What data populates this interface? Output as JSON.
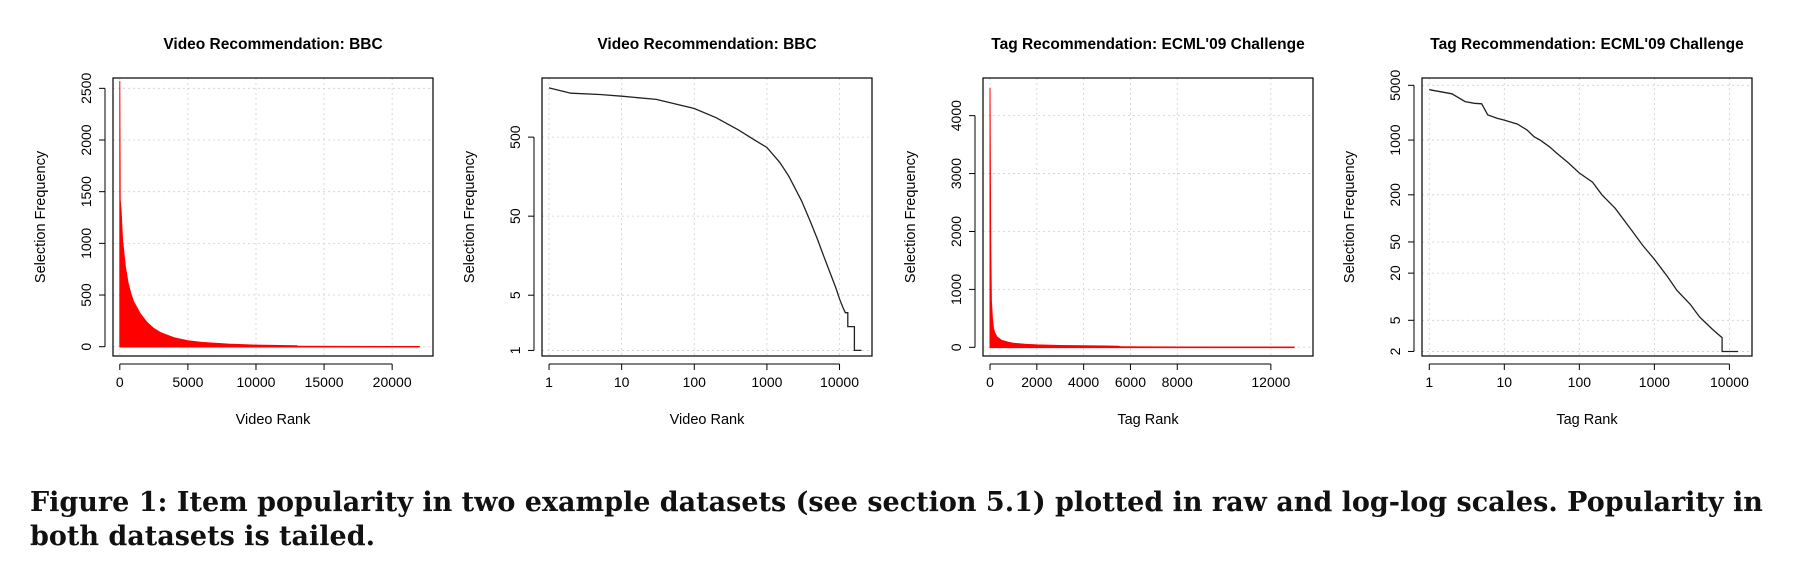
{
  "caption": "Figure 1: Item popularity in two example datasets (see section 5.1) plotted in raw and log-log scales. Popularity in both datasets is tailed.",
  "colors": {
    "raw_fill": "#ff0000",
    "line": "#222222",
    "grid": "#d0d0d0",
    "axis": "#000000"
  },
  "chart_data": [
    {
      "type": "area",
      "title": "Video Recommendation: BBC",
      "xlabel": "Video Rank",
      "ylabel": "Selection Frequency",
      "xscale": "linear",
      "yscale": "linear",
      "xlim": [
        -500,
        23000
      ],
      "ylim": [
        -90,
        2600
      ],
      "xticks": [
        0,
        5000,
        10000,
        15000,
        20000
      ],
      "xtick_labels": [
        "0",
        "5000",
        "10000",
        "15000",
        "20000"
      ],
      "yticks": [
        0,
        500,
        1000,
        1500,
        2000,
        2500
      ],
      "ytick_labels": [
        "0",
        "500",
        "1000",
        "1500",
        "2000",
        "2500"
      ],
      "grid": true,
      "series": [
        {
          "color": "#ff0000",
          "x": [
            1,
            30,
            100,
            200,
            400,
            600,
            800,
            1000,
            1500,
            2000,
            2500,
            3000,
            4000,
            5000,
            6000,
            7000,
            8000,
            10000,
            13000,
            13100,
            16000,
            20000,
            22000
          ],
          "y": [
            2570,
            1420,
            1300,
            1040,
            780,
            620,
            520,
            440,
            320,
            235,
            175,
            135,
            85,
            58,
            42,
            33,
            25,
            15,
            9,
            4,
            3,
            2,
            1
          ]
        }
      ]
    },
    {
      "type": "line",
      "title": "Video Recommendation: BBC",
      "xlabel": "Video Rank",
      "ylabel": "Selection Frequency",
      "xscale": "log",
      "yscale": "log",
      "xlim": [
        0.8,
        28000
      ],
      "ylim": [
        0.85,
        2800
      ],
      "xticks": [
        1,
        10,
        100,
        1000,
        10000
      ],
      "xtick_labels": [
        "1",
        "10",
        "100",
        "1000",
        "10000"
      ],
      "yticks": [
        1,
        5,
        50,
        500
      ],
      "ytick_labels": [
        "1",
        "5",
        "50",
        "500"
      ],
      "grid": true,
      "series": [
        {
          "color": "#222222",
          "x": [
            1,
            2,
            5,
            10,
            30,
            100,
            200,
            400,
            700,
            1000,
            1500,
            2000,
            3000,
            4000,
            5000,
            6000,
            7000,
            8000,
            9000,
            10000,
            11000,
            12000,
            13000,
            13000,
            16000,
            16000,
            20000
          ],
          "y": [
            2100,
            1800,
            1730,
            1650,
            1500,
            1150,
            880,
            620,
            450,
            370,
            240,
            160,
            78,
            42,
            25,
            16,
            11,
            8,
            6,
            4.5,
            3.6,
            3,
            3,
            2,
            2,
            1,
            1
          ]
        }
      ]
    },
    {
      "type": "area",
      "title": "Tag Recommendation: ECML'09 Challenge",
      "xlabel": "Tag Rank",
      "ylabel": "Selection Frequency",
      "xscale": "linear",
      "yscale": "linear",
      "xlim": [
        -300,
        13800
      ],
      "ylim": [
        -150,
        4650
      ],
      "xticks": [
        0,
        2000,
        4000,
        6000,
        8000,
        12000
      ],
      "xtick_labels": [
        "0",
        "2000",
        "4000",
        "6000",
        "8000",
        "12000"
      ],
      "yticks": [
        0,
        1000,
        2000,
        3000,
        4000
      ],
      "ytick_labels": [
        "0",
        "1000",
        "2000",
        "3000",
        "4000"
      ],
      "grid": true,
      "series": [
        {
          "color": "#ff0000",
          "x": [
            1,
            30,
            60,
            100,
            150,
            200,
            300,
            500,
            800,
            1000,
            1500,
            2000,
            3000,
            4000,
            5000,
            5500,
            5600,
            8000,
            10000,
            13000
          ],
          "y": [
            4480,
            1800,
            800,
            500,
            330,
            250,
            180,
            120,
            85,
            70,
            52,
            42,
            32,
            26,
            22,
            20,
            8,
            6,
            4,
            2
          ]
        }
      ]
    },
    {
      "type": "line",
      "title": "Tag Recommendation: ECML'09 Challenge",
      "xlabel": "Tag Rank",
      "ylabel": "Selection Frequency",
      "xscale": "log",
      "yscale": "log",
      "xlim": [
        0.8,
        20000
      ],
      "ylim": [
        1.75,
        6200
      ],
      "xticks": [
        1,
        10,
        100,
        1000,
        10000
      ],
      "xtick_labels": [
        "1",
        "10",
        "100",
        "1000",
        "10000"
      ],
      "yticks": [
        2,
        5,
        20,
        50,
        200,
        1000,
        5000
      ],
      "ytick_labels": [
        "2",
        "5",
        "20",
        "50",
        "200",
        "1000",
        "5000"
      ],
      "grid": true,
      "series": [
        {
          "color": "#222222",
          "x": [
            1,
            2,
            3,
            4,
            5,
            6,
            8,
            10,
            15,
            20,
            25,
            30,
            40,
            50,
            70,
            100,
            150,
            200,
            300,
            500,
            700,
            1000,
            1500,
            2000,
            3000,
            4000,
            5000,
            6000,
            8000,
            8000,
            13000
          ],
          "y": [
            4400,
            3900,
            3100,
            2950,
            2900,
            2100,
            1900,
            1800,
            1600,
            1350,
            1100,
            1000,
            820,
            680,
            520,
            380,
            290,
            200,
            135,
            70,
            45,
            30,
            18,
            12,
            8,
            5.5,
            4.5,
            3.8,
            3,
            2,
            2
          ]
        }
      ]
    }
  ]
}
